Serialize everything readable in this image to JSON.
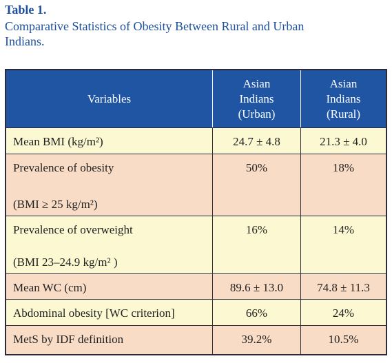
{
  "header": {
    "title": "Table 1.",
    "subtitle": [
      "Comparative Statistics of Obesity Between Rural and Urban",
      "Indians."
    ]
  },
  "table": {
    "columns": [
      [
        "Variables"
      ],
      [
        "Asian",
        "Indians",
        "(Urban)"
      ],
      [
        "Asian",
        "Indians",
        "(Rural)"
      ]
    ],
    "rows": [
      {
        "label": [
          "Mean BMI (kg/m²)"
        ],
        "values": [
          "24.7 ± 4.8",
          "21.3 ± 4.0"
        ]
      },
      {
        "label": [
          "Prevalence of obesity",
          "(BMI ≥ 25 kg/m²)"
        ],
        "values": [
          "50%",
          "18%"
        ]
      },
      {
        "label": [
          "Prevalence of overweight",
          "(BMI 23–24.9 kg/m² )"
        ],
        "values": [
          "16%",
          "14%"
        ]
      },
      {
        "label": [
          "Mean WC (cm)"
        ],
        "values": [
          "89.6 ± 13.0",
          "74.8 ± 11.3"
        ]
      },
      {
        "label": [
          "Abdominal obesity [WC criterion]"
        ],
        "values": [
          "66%",
          "24%"
        ]
      },
      {
        "label": [
          "MetS by IDF definition"
        ],
        "values": [
          "39.2%",
          "10.5%"
        ]
      }
    ]
  }
}
